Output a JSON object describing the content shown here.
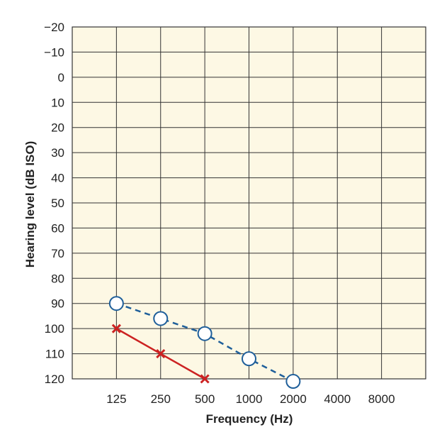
{
  "chart_data": {
    "type": "line",
    "xlabel": "Frequency (Hz)",
    "ylabel": "Hearing level (dB ISO)",
    "x_categories": [
      "125",
      "250",
      "500",
      "1000",
      "2000",
      "4000",
      "8000"
    ],
    "y_ticks": [
      -20,
      -10,
      0,
      10,
      20,
      30,
      40,
      50,
      60,
      70,
      80,
      90,
      100,
      110,
      120
    ],
    "ylim": [
      -20,
      120
    ],
    "y_inverted": true,
    "grid": true,
    "background_color": "#fdf8e4",
    "series": [
      {
        "marker": "circle",
        "line_style": "dashed",
        "color": "#1f5f9a",
        "x": [
          "125",
          "250",
          "500",
          "1000",
          "2000"
        ],
        "values": [
          90,
          96,
          102,
          112,
          121
        ]
      },
      {
        "marker": "cross",
        "line_style": "solid",
        "color": "#cc2222",
        "x": [
          "125",
          "250",
          "500"
        ],
        "values": [
          100,
          110,
          120
        ]
      }
    ]
  }
}
